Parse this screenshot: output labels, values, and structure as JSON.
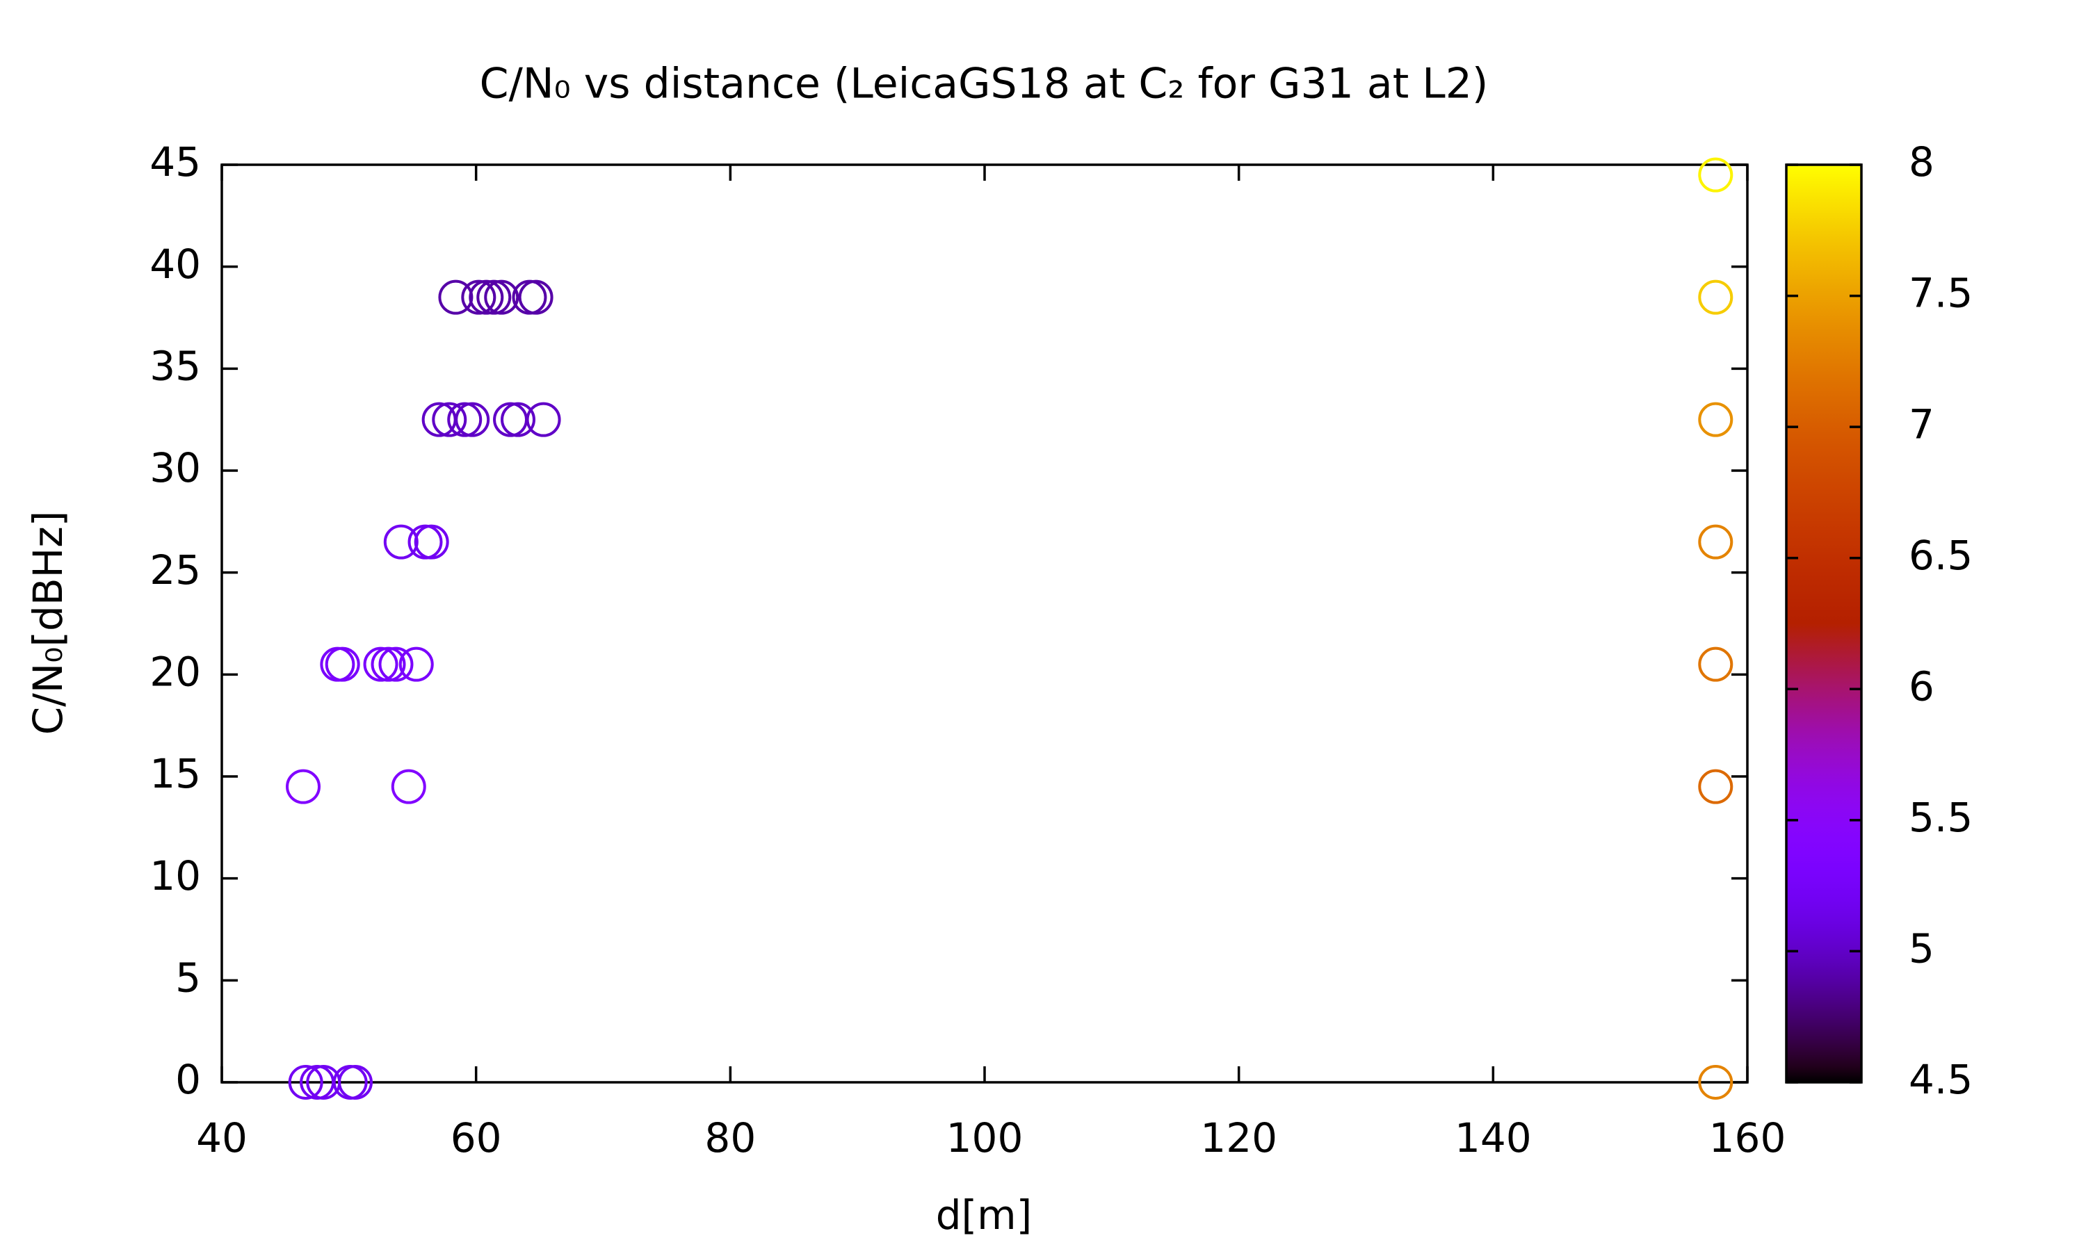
{
  "chart_data": {
    "type": "scatter",
    "title": "C/N₀ vs distance (LeicaGS18 at C₂ for G31 at L2)",
    "x_label": "d[m]",
    "y_label": "C/N₀[dBHz]",
    "x": [
      46.6,
      47.5,
      48.0,
      50.1,
      50.5,
      46.4,
      54.7,
      49.1,
      49.5,
      52.5,
      53.1,
      53.7,
      55.3,
      54.1,
      56.0,
      56.5,
      57.1,
      57.9,
      59.1,
      59.7,
      62.7,
      63.3,
      65.3,
      58.4,
      60.2,
      60.8,
      61.4,
      62.0,
      64.2,
      64.7,
      157.5,
      157.5,
      157.5,
      157.5,
      157.5,
      157.5,
      157.5
    ],
    "values": [
      0,
      0,
      0,
      0,
      0,
      14.5,
      14.5,
      20.5,
      20.5,
      20.5,
      20.5,
      20.5,
      20.5,
      26.5,
      26.5,
      26.5,
      32.5,
      32.5,
      32.5,
      32.5,
      32.5,
      32.5,
      32.5,
      38.5,
      38.5,
      38.5,
      38.5,
      38.5,
      38.5,
      38.5,
      0,
      14.5,
      20.5,
      26.5,
      32.5,
      38.5,
      44.5
    ],
    "color_values": [
      5.2,
      5.2,
      5.2,
      5.2,
      5.2,
      5.4,
      5.4,
      5.3,
      5.3,
      5.3,
      5.3,
      5.3,
      5.3,
      5.2,
      5.2,
      5.2,
      5.0,
      5.0,
      5.0,
      5.0,
      5.0,
      5.0,
      5.0,
      4.9,
      4.9,
      4.9,
      4.9,
      4.9,
      4.9,
      4.9,
      7.3,
      7.1,
      7.2,
      7.3,
      7.4,
      7.75,
      7.95
    ],
    "xlim": [
      40,
      160
    ],
    "xticks": [
      40,
      60,
      80,
      100,
      120,
      140,
      160
    ],
    "ylim": [
      0,
      45
    ],
    "yticks": [
      0,
      5,
      10,
      15,
      20,
      25,
      30,
      35,
      40,
      45
    ],
    "clim": [
      4.5,
      8
    ],
    "cticks": [
      4.5,
      5,
      5.5,
      6,
      6.5,
      7,
      7.5,
      8
    ]
  }
}
